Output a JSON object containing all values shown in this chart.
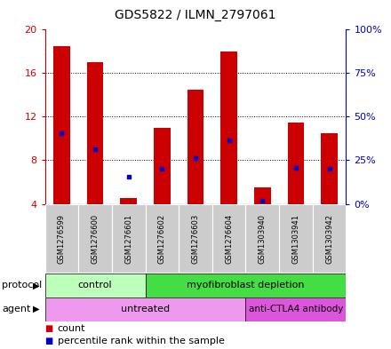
{
  "title": "GDS5822 / ILMN_2797061",
  "samples": [
    "GSM1276599",
    "GSM1276600",
    "GSM1276601",
    "GSM1276602",
    "GSM1276603",
    "GSM1276604",
    "GSM1303940",
    "GSM1303941",
    "GSM1303942"
  ],
  "red_values": [
    18.5,
    17.0,
    4.5,
    11.0,
    14.5,
    18.0,
    5.5,
    11.5,
    10.5
  ],
  "blue_values_left": [
    10.5,
    9.0,
    6.5,
    7.2,
    8.2,
    9.8,
    4.3,
    7.3,
    7.2
  ],
  "ymin": 4,
  "ymax": 20,
  "yticks_left": [
    4,
    8,
    12,
    16,
    20
  ],
  "yticks_right": [
    0,
    25,
    50,
    75,
    100
  ],
  "y2labels": [
    "0%",
    "25%",
    "50%",
    "75%",
    "100%"
  ],
  "hgrid_values": [
    8,
    12,
    16
  ],
  "red_color": "#cc0000",
  "blue_color": "#0000cc",
  "bar_width": 0.5,
  "protocol_control_n": 3,
  "agent_untreated_n": 6,
  "protocol_labels": [
    "control",
    "myofibroblast depletion"
  ],
  "agent_labels": [
    "untreated",
    "anti-CTLA4 antibody"
  ],
  "protocol_color_light": "#bbffbb",
  "protocol_color_dark": "#44dd44",
  "agent_color_light": "#ee99ee",
  "agent_color_dark": "#dd55dd",
  "tick_color_left": "#cc0000",
  "tick_color_right": "#0000bb",
  "title_fontsize": 10,
  "tick_fontsize": 8,
  "sample_fontsize": 6,
  "row_fontsize": 8,
  "legend_fontsize": 8
}
